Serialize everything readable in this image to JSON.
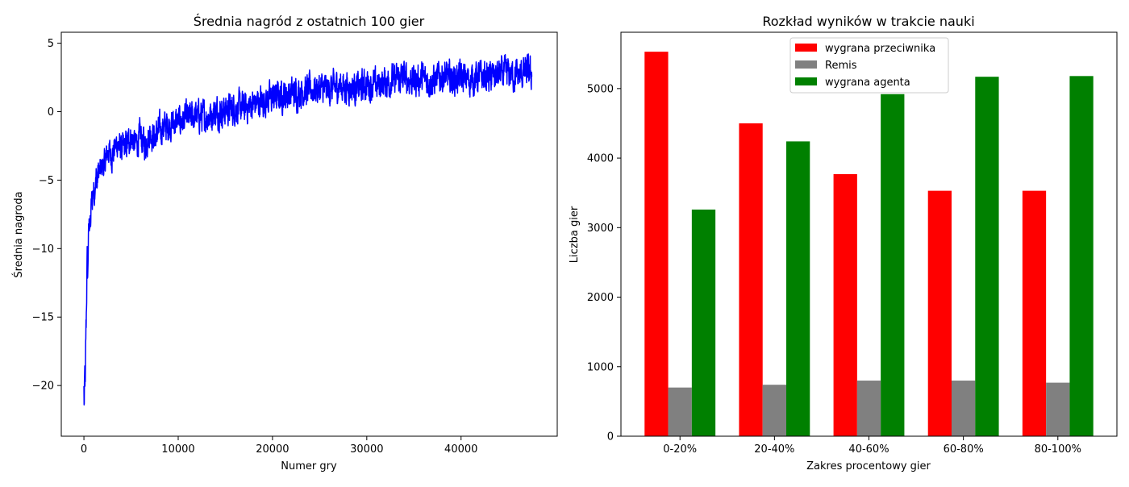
{
  "chart_data": [
    {
      "type": "line",
      "title": "Średnia nagród z ostatnich 100 gier",
      "xlabel": "Numer gry",
      "ylabel": "Średnia nagroda",
      "xlim": [
        -2400,
        50200
      ],
      "ylim": [
        -23.7,
        5.8
      ],
      "xticks": [
        0,
        10000,
        20000,
        30000,
        40000
      ],
      "yticks": [
        5,
        0,
        -5,
        -10,
        -15,
        -20
      ],
      "ytick_labels": [
        "5",
        "0",
        "−5",
        "−10",
        "−15",
        "−20"
      ],
      "grid": false,
      "color": "#0000ff",
      "series": [
        {
          "x": [
            0,
            50,
            100,
            150,
            200,
            250,
            300,
            350,
            400,
            450,
            500,
            600,
            700,
            800,
            900,
            1000,
            1100,
            1200,
            1300,
            1400,
            1500,
            1700,
            1900,
            2200,
            2600,
            3000,
            3500,
            4000,
            4500,
            5000,
            5500,
            6000,
            6500,
            7000,
            7500,
            8000,
            8500,
            9000,
            10000,
            11000,
            12000,
            13000,
            14000,
            15000,
            16000,
            17000,
            18000,
            19000,
            20000,
            21000,
            22000,
            23000,
            24000,
            25000,
            26000,
            27000,
            28000,
            29000,
            30000,
            31000,
            32000,
            33000,
            34000,
            35000,
            36000,
            37000,
            38000,
            39000,
            40000,
            41000,
            42000,
            43000,
            44000,
            45000,
            46000,
            47000,
            47500
          ],
          "y": [
            -20.5,
            -22,
            -19.5,
            -21,
            -17,
            -15,
            -12.5,
            -11,
            -12.5,
            -10,
            -9,
            -7.8,
            -8.5,
            -6.5,
            -6.5,
            -5.5,
            -6,
            -5,
            -4.7,
            -5.5,
            -4.3,
            -4.5,
            -4,
            -3.8,
            -2.8,
            -3.2,
            -2.3,
            -2.8,
            -2.5,
            -1.8,
            -2.4,
            -1.8,
            -2.4,
            -1.5,
            -1.9,
            -1.4,
            -1.1,
            -1,
            -0.7,
            -0.5,
            -0.3,
            -0.4,
            0,
            0.1,
            0.3,
            0.2,
            0.6,
            0.8,
            1,
            1.2,
            1.3,
            1.5,
            1.6,
            1.7,
            1.6,
            1.9,
            1.8,
            1.7,
            2,
            1.9,
            2.2,
            2.3,
            2.5,
            2.3,
            2.4,
            2.2,
            2.6,
            2.4,
            2.5,
            2.3,
            2.6,
            2.5,
            2.7,
            2.8,
            2.6,
            2.9,
            2.7
          ],
          "noise": [
            3,
            4,
            3,
            3,
            3,
            2.5,
            2.5,
            2.2,
            2,
            2,
            1.8,
            1.7,
            1.6,
            1.6,
            1.6,
            1.6,
            1.6,
            1.5,
            1.5,
            1.6,
            1.5,
            1.5,
            1.6,
            1.5,
            1.5,
            1.7,
            1.6,
            1.6,
            1.8,
            1.6,
            1.6,
            1.8,
            1.8,
            1.6,
            1.7,
            1.8,
            1.7,
            1.8,
            1.7,
            1.8,
            1.8,
            1.8,
            1.8,
            1.8,
            1.8,
            1.8,
            1.8,
            1.8,
            1.8,
            1.8,
            1.8,
            1.8,
            1.8,
            1.8,
            1.8,
            1.8,
            1.8,
            1.8,
            1.8,
            1.8,
            1.8,
            1.8,
            1.8,
            1.8,
            1.8,
            1.8,
            1.8,
            1.8,
            1.8,
            1.8,
            1.8,
            1.8,
            1.8,
            1.8,
            1.8,
            1.8,
            1.8
          ]
        }
      ]
    },
    {
      "type": "bar",
      "title": "Rozkład wyników w trakcie nauki",
      "xlabel": "Zakres procentowy gier",
      "ylabel": "Liczba gier",
      "ylim": [
        0,
        5810
      ],
      "yticks": [
        0,
        1000,
        2000,
        3000,
        4000,
        5000
      ],
      "grid": false,
      "legend_position": "top-center",
      "categories": [
        "0-20%",
        "20-40%",
        "40-60%",
        "60-80%",
        "80-100%"
      ],
      "series": [
        {
          "name": "wygrana przeciwnika",
          "color": "#ff0000",
          "values": [
            5530,
            4500,
            3770,
            3530,
            3530
          ]
        },
        {
          "name": "Remis",
          "color": "#808080",
          "values": [
            700,
            740,
            800,
            800,
            770
          ]
        },
        {
          "name": "wygrana agenta",
          "color": "#008000",
          "values": [
            3260,
            4240,
            4920,
            5170,
            5180
          ]
        }
      ]
    }
  ]
}
